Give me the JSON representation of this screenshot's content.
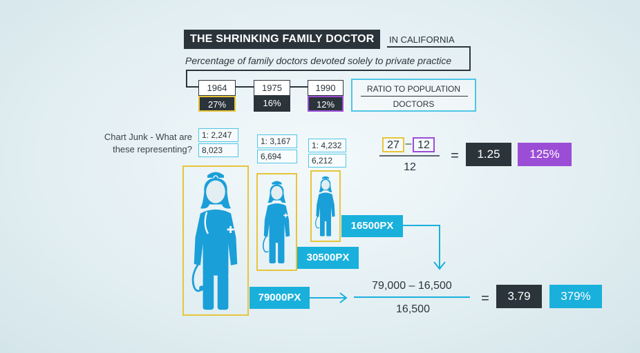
{
  "title": "THE SHRINKING FAMILY DOCTOR",
  "title_suffix": "IN CALIFORNIA",
  "subtitle": "Percentage of family doctors devoted solely to private practice",
  "years": [
    {
      "year": "1964",
      "pct": "27%",
      "highlight": "#e6c53a"
    },
    {
      "year": "1975",
      "pct": "16%",
      "highlight": ""
    },
    {
      "year": "1990",
      "pct": "12%",
      "highlight": "#9b4dd6"
    }
  ],
  "legend": {
    "line1": "RATIO TO POPULATION",
    "line2": "DOCTORS"
  },
  "question": "Chart Junk - What are these representing?",
  "ratios": [
    {
      "ratio": "1: 2,247",
      "doctors": "8,023"
    },
    {
      "ratio": "1: 3,167",
      "doctors": "6,694"
    },
    {
      "ratio": "1: 4,232",
      "doctors": "6,212"
    }
  ],
  "formula1": {
    "a": "27",
    "minus": "–",
    "b": "12",
    "denominator": "12",
    "equals": "=",
    "result": "1.25",
    "percent": "125%"
  },
  "figures": [
    {
      "area_label": "79000PX"
    },
    {
      "area_label": "30500PX"
    },
    {
      "area_label": "16500PX"
    }
  ],
  "formula2": {
    "numerator": "79,000 – 16,500",
    "denominator": "16,500",
    "equals": "=",
    "result": "3.79",
    "percent": "379%"
  },
  "colors": {
    "dark": "#2b343b",
    "accent_blue": "#1ab0dc",
    "outline_blue": "#4ec5e6",
    "yellow": "#e6c53a",
    "purple": "#9b4dd6",
    "figure_blue": "#1a9fd8"
  }
}
